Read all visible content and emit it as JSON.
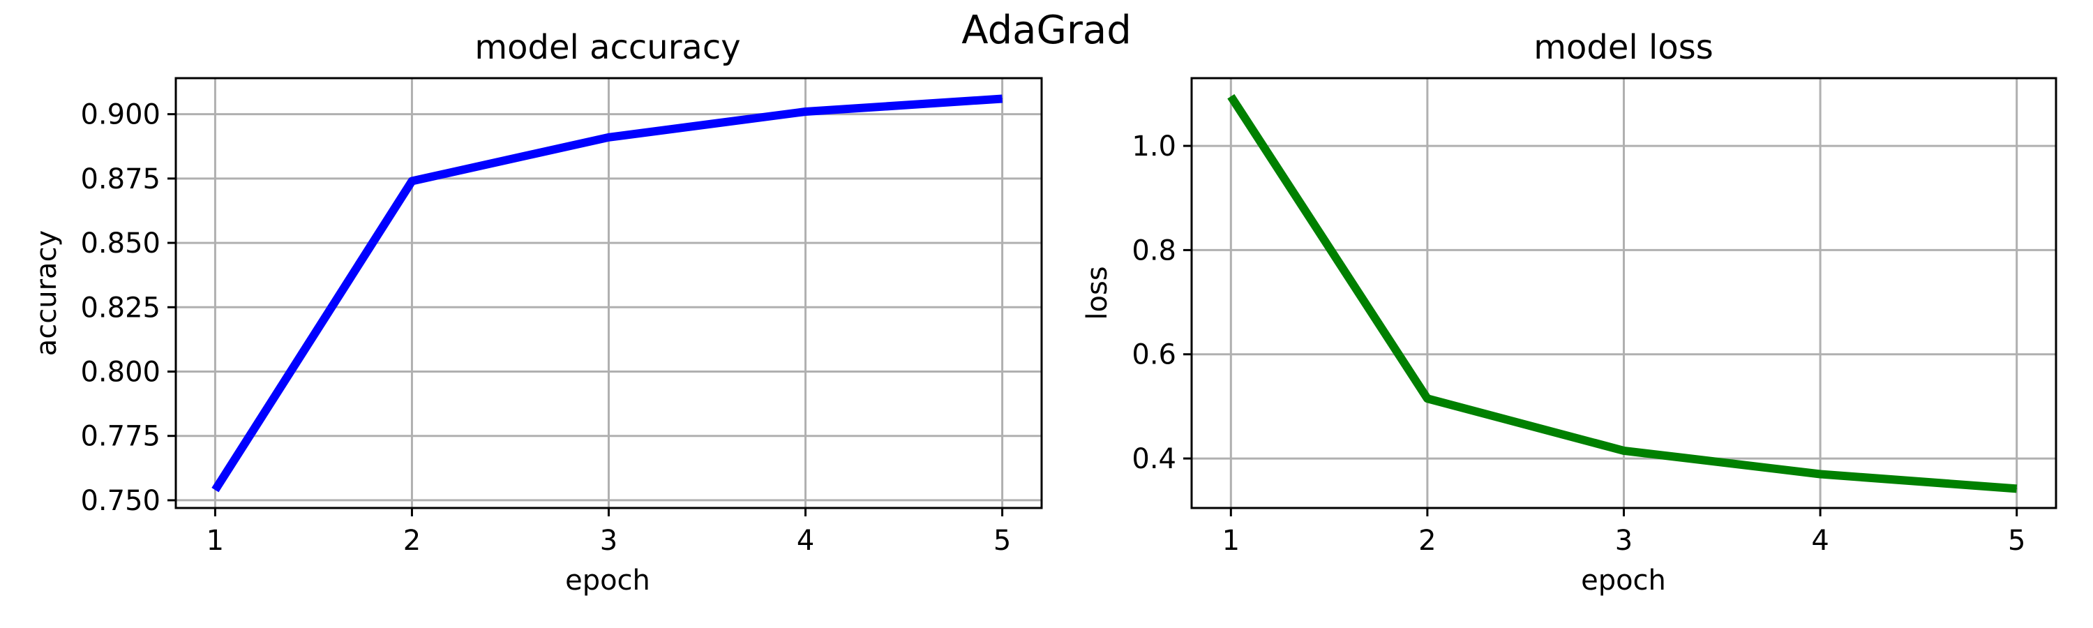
{
  "figure": {
    "suptitle": "AdaGrad"
  },
  "chart_data": [
    {
      "type": "line",
      "title": "model accuracy",
      "xlabel": "epoch",
      "ylabel": "accuracy",
      "x": [
        1,
        2,
        3,
        4,
        5
      ],
      "xlim": [
        0.8,
        5.2
      ],
      "ylim": [
        0.747,
        0.914
      ],
      "xticks": [
        1,
        2,
        3,
        4,
        5
      ],
      "yticks": [
        0.75,
        0.775,
        0.8,
        0.825,
        0.85,
        0.875,
        0.9
      ],
      "ytick_labels": [
        "0.750",
        "0.775",
        "0.800",
        "0.825",
        "0.850",
        "0.875",
        "0.900"
      ],
      "grid": true,
      "series": [
        {
          "values": [
            0.754,
            0.874,
            0.891,
            0.901,
            0.906
          ],
          "color": "#0000ff"
        }
      ]
    },
    {
      "type": "line",
      "title": "model loss",
      "xlabel": "epoch",
      "ylabel": "loss",
      "x": [
        1,
        2,
        3,
        4,
        5
      ],
      "xlim": [
        0.8,
        5.2
      ],
      "ylim": [
        0.305,
        1.13
      ],
      "xticks": [
        1,
        2,
        3,
        4,
        5
      ],
      "yticks": [
        0.4,
        0.6,
        0.8,
        1.0
      ],
      "ytick_labels": [
        "0.4",
        "0.6",
        "0.8",
        "1.0"
      ],
      "grid": true,
      "series": [
        {
          "values": [
            1.095,
            0.515,
            0.415,
            0.37,
            0.342
          ],
          "color": "#008000"
        }
      ]
    }
  ]
}
